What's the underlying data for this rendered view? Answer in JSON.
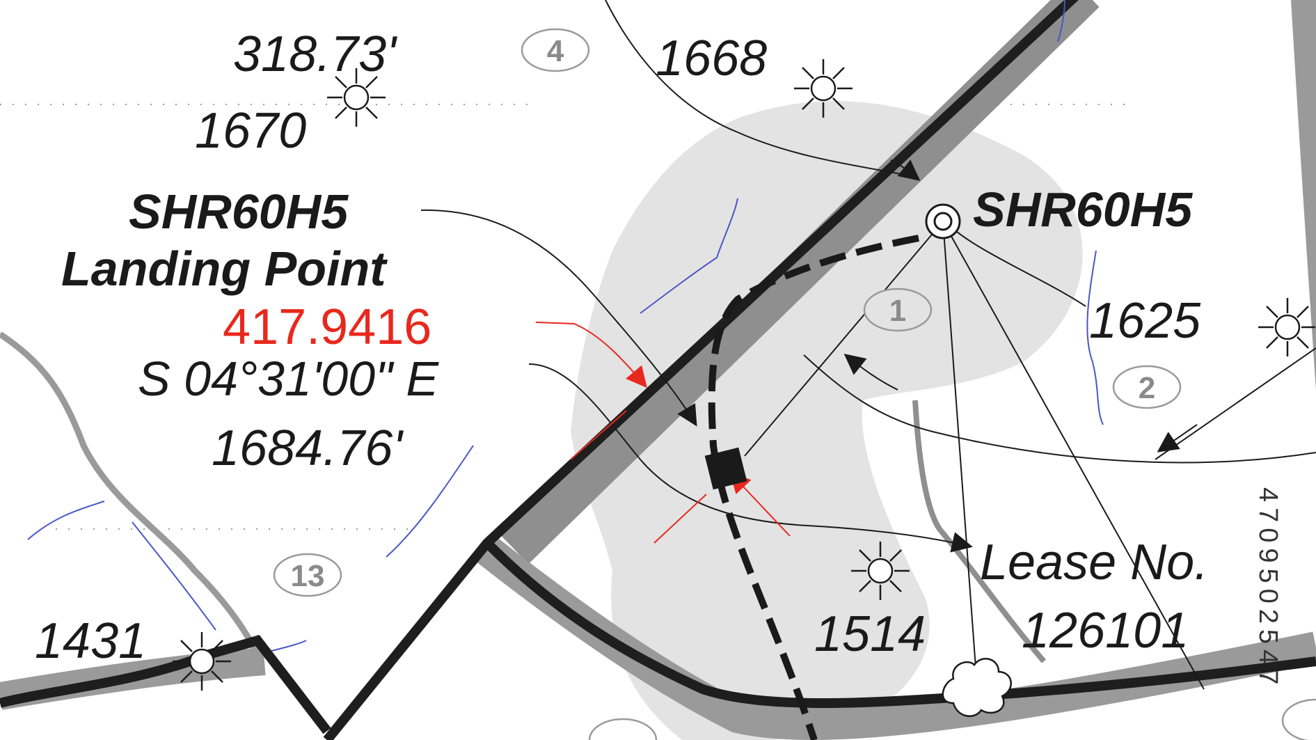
{
  "labels": {
    "dist_top": "318.73'",
    "elev_1670": "1670",
    "elev_1668": "1668",
    "landing_name": "SHR60H5",
    "landing_point": "Landing Point",
    "landing_value": "417.9416",
    "bearing": "S 04°31'00\" E",
    "distance": "1684.76'",
    "well_name": "SHR60H5",
    "elev_1625": "1625",
    "elev_1431": "1431",
    "elev_1514": "1514",
    "lease_label": "Lease No.",
    "lease_number": "126101",
    "api_number": "4709502547"
  },
  "tracts": {
    "t4": "4",
    "t1": "1",
    "t2": "2",
    "t13": "13"
  },
  "colors": {
    "road_dark": "#1e1e1e",
    "road_gray": "#9a9a9a",
    "pad_fill": "#e3e3e3",
    "stream": "#4a55c8",
    "accent_red": "#e8281e"
  },
  "icons": {
    "well_symbol": "sun-star-icon",
    "surface_location": "double-circle-icon",
    "landing_point": "filled-square-icon",
    "tree": "tree-icon"
  }
}
